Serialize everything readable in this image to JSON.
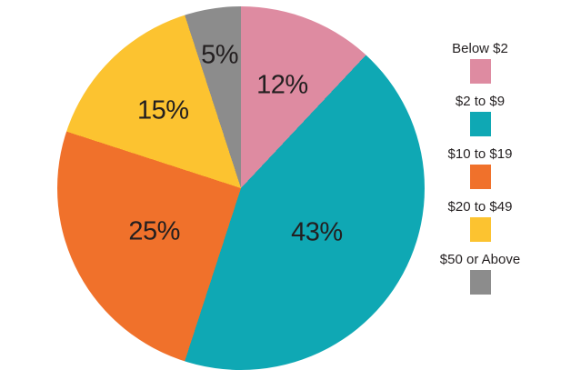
{
  "chart_data": {
    "type": "pie",
    "title": "",
    "start_angle_deg": 0,
    "direction": "clockwise",
    "legend_position": "right",
    "slices": [
      {
        "label": "Below $2",
        "value": 12,
        "display": "12%",
        "color": "#de8ba1"
      },
      {
        "label": "$2 to $9",
        "value": 43,
        "display": "43%",
        "color": "#0fa8b4"
      },
      {
        "label": "$10 to $19",
        "value": 25,
        "display": "25%",
        "color": "#f0712b"
      },
      {
        "label": "$20 to $49",
        "value": 15,
        "display": "15%",
        "color": "#fcc330"
      },
      {
        "label": "$50 or Above",
        "value": 5,
        "display": "5%",
        "color": "#8c8c8c"
      }
    ]
  }
}
